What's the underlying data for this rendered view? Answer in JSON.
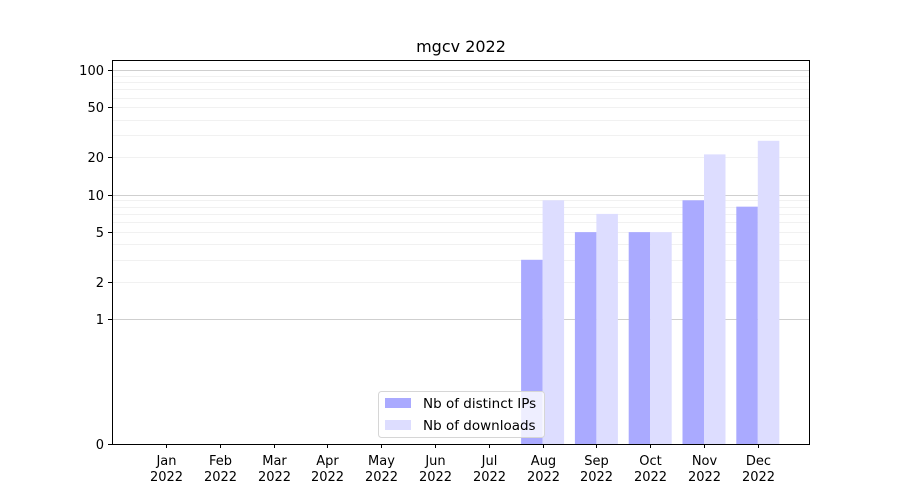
{
  "chart_data": {
    "type": "bar",
    "title": "mgcv 2022",
    "xlabel": "",
    "ylabel": "",
    "categories": [
      "Jan\n2022",
      "Feb\n2022",
      "Mar\n2022",
      "Apr\n2022",
      "May\n2022",
      "Jun\n2022",
      "Jul\n2022",
      "Aug\n2022",
      "Sep\n2022",
      "Oct\n2022",
      "Nov\n2022",
      "Dec\n2022"
    ],
    "series": [
      {
        "name": "Nb of distinct IPs",
        "color": "#aaaaff",
        "values": [
          0,
          0,
          0,
          0,
          0,
          0,
          0,
          3,
          5,
          5,
          9,
          8
        ]
      },
      {
        "name": "Nb of downloads",
        "color": "#ddddff",
        "values": [
          0,
          0,
          0,
          0,
          0,
          0,
          0,
          9,
          7,
          5,
          21,
          27
        ]
      }
    ],
    "yscale": "symlog",
    "ylim": [
      0,
      120
    ],
    "yticks": [
      0,
      1,
      2,
      5,
      10,
      20,
      50,
      100
    ],
    "grid": true,
    "legend_position": "lower-center"
  }
}
